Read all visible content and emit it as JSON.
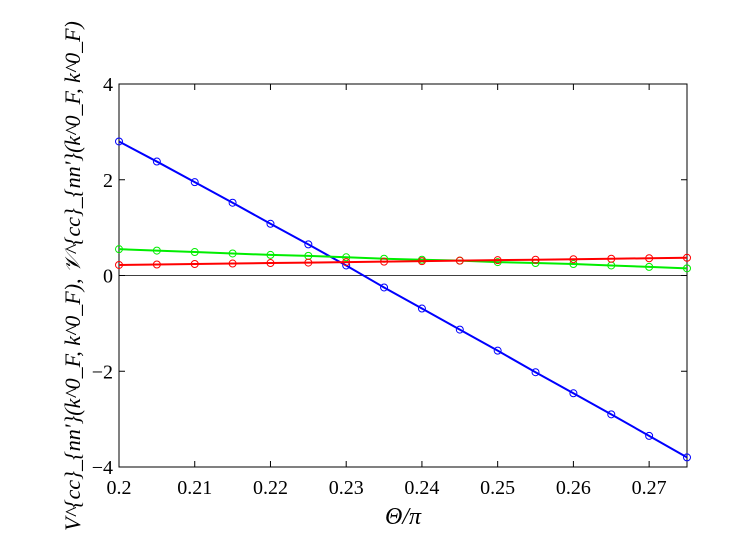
{
  "chart_data": {
    "type": "line",
    "xlabel": "Θ/π",
    "ylabel": "V^{cc}_{nn'}(k^0_F, k^0_F), 𝒱^{cc}_{nn'}(k^0_F, k^0_F)",
    "xlim": [
      0.2,
      0.275
    ],
    "ylim": [
      -4,
      4
    ],
    "x_ticks": [
      "0.2",
      "0.21",
      "0.22",
      "0.23",
      "0.24",
      "0.25",
      "0.26",
      "0.27"
    ],
    "y_ticks": [
      "4",
      "2",
      "0",
      "−2",
      "−4"
    ],
    "grid": false,
    "reference_line": 0,
    "x": [
      0.2,
      0.205,
      0.21,
      0.215,
      0.22,
      0.225,
      0.23,
      0.235,
      0.24,
      0.245,
      0.25,
      0.255,
      0.26,
      0.265,
      0.27,
      0.275
    ],
    "series": [
      {
        "color": "#0000ff",
        "marker": "circle",
        "values": [
          2.8,
          2.38,
          1.95,
          1.52,
          1.08,
          0.65,
          0.21,
          -0.25,
          -0.69,
          -1.13,
          -1.57,
          -2.02,
          -2.46,
          -2.9,
          -3.35,
          -3.8
        ]
      },
      {
        "color": "#00ee00",
        "marker": "circle",
        "values": [
          0.55,
          0.52,
          0.49,
          0.46,
          0.43,
          0.41,
          0.38,
          0.35,
          0.33,
          0.31,
          0.28,
          0.26,
          0.24,
          0.21,
          0.18,
          0.15
        ]
      },
      {
        "color": "#ff0000",
        "marker": "circle",
        "values": [
          0.22,
          0.23,
          0.24,
          0.25,
          0.26,
          0.27,
          0.28,
          0.29,
          0.3,
          0.31,
          0.32,
          0.33,
          0.34,
          0.35,
          0.36,
          0.37
        ]
      }
    ]
  }
}
